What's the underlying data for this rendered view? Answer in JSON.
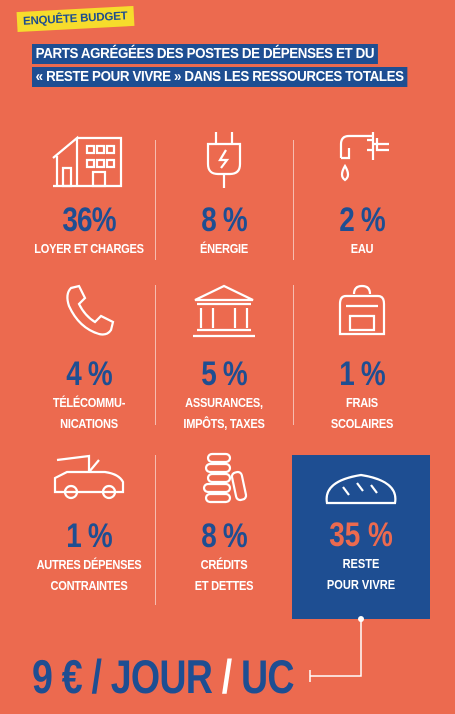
{
  "tag": "ENQUÊTE BUDGET",
  "title": {
    "line1": "PARTS AGRÉGÉES DES POSTES DE DÉPENSES  ET DU",
    "line2": "« RESTE POUR VIVRE »  DANS LES RESSOURCES TOTALES"
  },
  "items": [
    {
      "icon": "house-icon",
      "percent": "36%",
      "label1": "LOYER ET CHARGES",
      "label2": ""
    },
    {
      "icon": "plug-icon",
      "percent": "8 %",
      "label1": "ÉNERGIE",
      "label2": ""
    },
    {
      "icon": "faucet-icon",
      "percent": "2 %",
      "label1": "EAU",
      "label2": ""
    },
    {
      "icon": "phone-icon",
      "percent": "4 %",
      "label1": "TÉLÉCOMMU-",
      "label2": "NICATIONS"
    },
    {
      "icon": "bank-icon",
      "percent": "5 %",
      "label1": "ASSURANCES,",
      "label2": "IMPÔTS, TAXES"
    },
    {
      "icon": "backpack-icon",
      "percent": "1 %",
      "label1": "FRAIS",
      "label2": "SCOLAIRES"
    },
    {
      "icon": "car-icon",
      "percent": "1 %",
      "label1": "AUTRES DÉPENSES",
      "label2": "CONTRAINTES"
    },
    {
      "icon": "coins-icon",
      "percent": "8 %",
      "label1": "CRÉDITS",
      "label2": "ET DETTES"
    }
  ],
  "highlight": {
    "icon": "bread-icon",
    "percent": "35 %",
    "label1": "RESTE",
    "label2": "POUR VIVRE"
  },
  "footer": {
    "part1": "9 € / JOUR ",
    "slash": "/",
    "part2": " UC"
  },
  "colors": {
    "background": "#ec6a4f",
    "blue": "#1e4e92",
    "yellow": "#f6dc2c",
    "white": "#ffffff"
  }
}
